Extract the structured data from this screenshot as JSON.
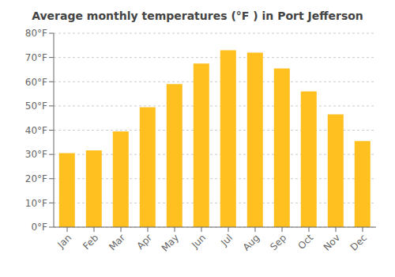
{
  "chart_data": {
    "type": "bar",
    "title": "Average monthly temperatures (°F ) in Port Jefferson",
    "categories": [
      "Jan",
      "Feb",
      "Mar",
      "Apr",
      "May",
      "Jun",
      "Jul",
      "Aug",
      "Sep",
      "Oct",
      "Nov",
      "Dec"
    ],
    "values": [
      30.5,
      31.7,
      39.5,
      49.5,
      59.0,
      67.5,
      73.0,
      72.0,
      65.5,
      56.0,
      46.5,
      35.5
    ],
    "color": "#FFC020",
    "ylim": [
      0,
      80
    ],
    "yticks": [
      {
        "value": 0,
        "label": "0°F"
      },
      {
        "value": 10,
        "label": "10°F"
      },
      {
        "value": 20,
        "label": "20°F"
      },
      {
        "value": 30,
        "label": "30°F"
      },
      {
        "value": 40,
        "label": "40°F"
      },
      {
        "value": 50,
        "label": "50°F"
      },
      {
        "value": 60,
        "label": "60°F"
      },
      {
        "value": 70,
        "label": "70°F"
      },
      {
        "value": 80,
        "label": "80°F"
      }
    ],
    "grid": true
  }
}
